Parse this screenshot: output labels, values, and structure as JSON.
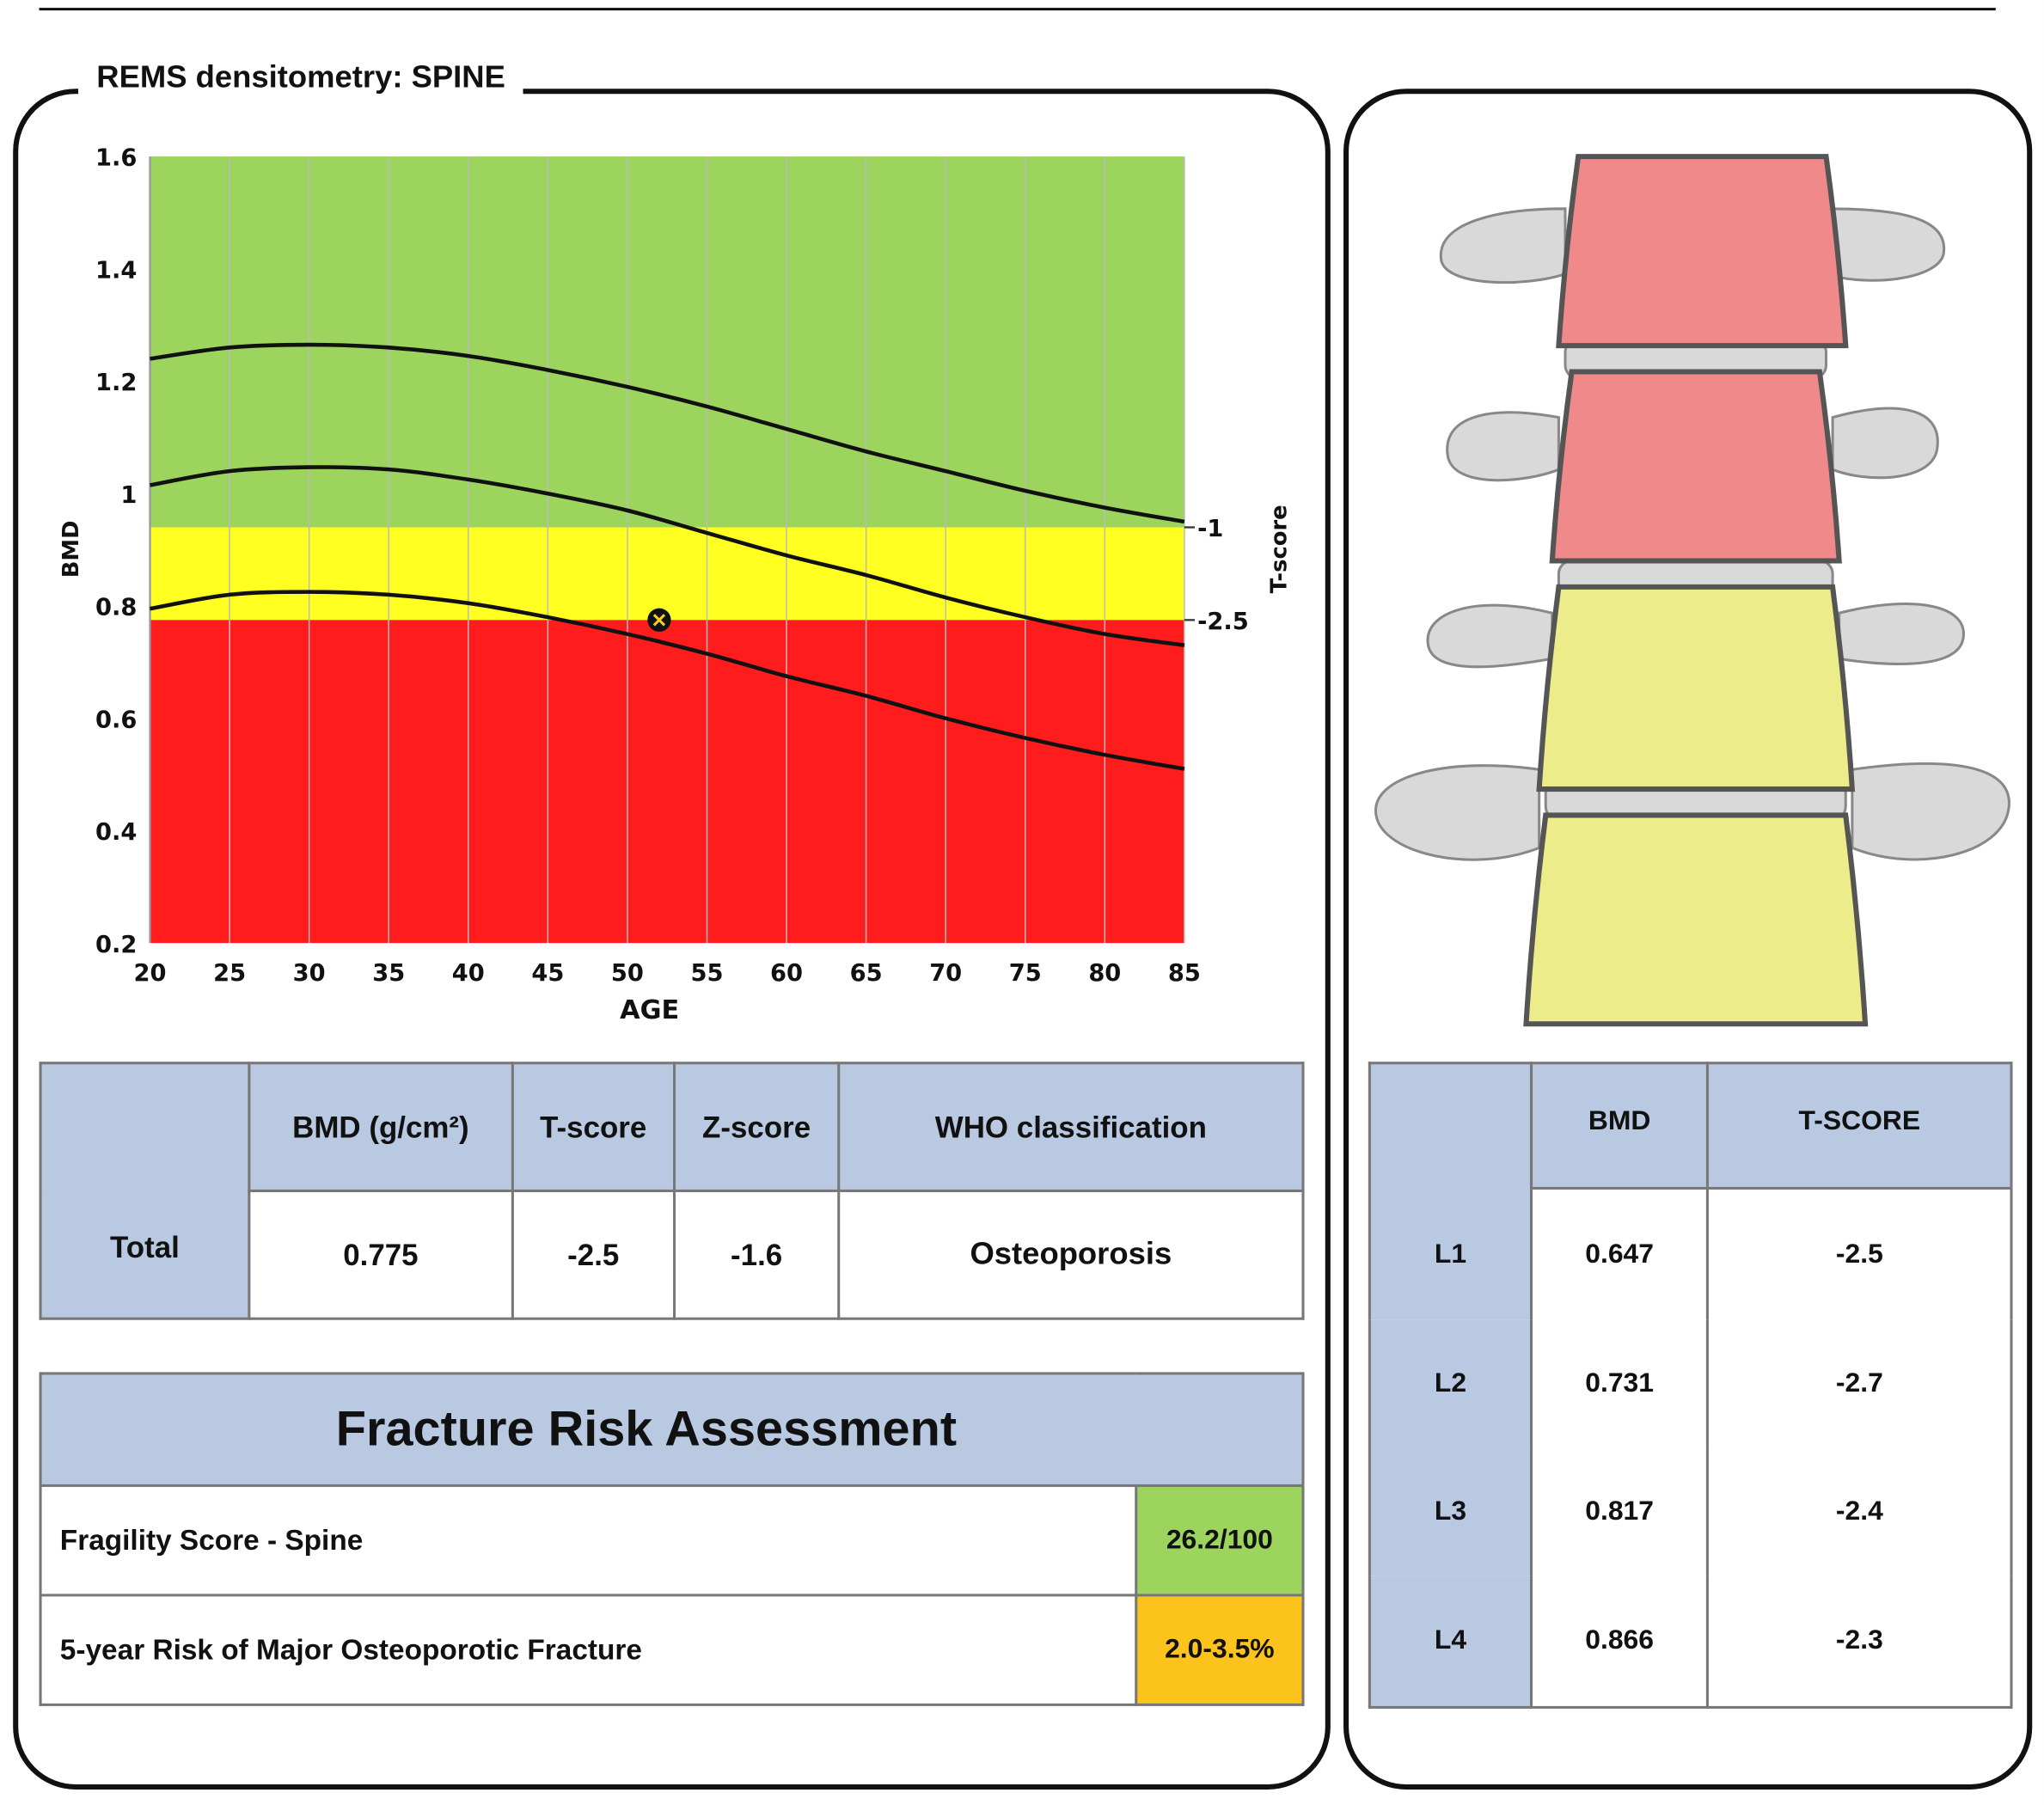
{
  "panel_title": "REMS densitometry: SPINE",
  "chart_data": {
    "type": "line",
    "xlabel": "AGE",
    "ylabel": "BMD",
    "y2label": "T-score",
    "xlim": [
      20,
      85
    ],
    "ylim": [
      0.2,
      1.6
    ],
    "xticks": [
      "20",
      "25",
      "30",
      "35",
      "40",
      "45",
      "50",
      "55",
      "60",
      "65",
      "70",
      "75",
      "80",
      "85"
    ],
    "yticks": [
      "0.2",
      "0.4",
      "0.6",
      "0.8",
      "1",
      "1.2",
      "1.4",
      "1.6"
    ],
    "zones": [
      {
        "name": "normal",
        "from": 0.94,
        "to": 1.6,
        "color": "#9cd45e"
      },
      {
        "name": "osteopenia",
        "from": 0.775,
        "to": 0.94,
        "color": "#ffff22"
      },
      {
        "name": "osteoporosis",
        "from": 0.2,
        "to": 0.775,
        "color": "#fe1c1c"
      }
    ],
    "t_score_marks": [
      {
        "label": "-1",
        "bmd": 0.94
      },
      {
        "label": "-2.5",
        "bmd": 0.775
      }
    ],
    "x": [
      20,
      25,
      30,
      35,
      40,
      45,
      50,
      55,
      60,
      65,
      70,
      75,
      80,
      85
    ],
    "series": [
      {
        "name": "upper",
        "values": [
          1.24,
          1.26,
          1.265,
          1.26,
          1.245,
          1.22,
          1.19,
          1.155,
          1.115,
          1.075,
          1.04,
          1.005,
          0.975,
          0.95
        ]
      },
      {
        "name": "mean",
        "values": [
          1.015,
          1.04,
          1.047,
          1.043,
          1.025,
          1.0,
          0.97,
          0.93,
          0.89,
          0.855,
          0.815,
          0.78,
          0.75,
          0.73
        ]
      },
      {
        "name": "lower",
        "values": [
          0.795,
          0.82,
          0.825,
          0.82,
          0.805,
          0.78,
          0.75,
          0.715,
          0.675,
          0.64,
          0.6,
          0.565,
          0.535,
          0.51
        ]
      }
    ],
    "patient": {
      "age": 52,
      "bmd": 0.775
    }
  },
  "summary": {
    "headers": [
      "BMD (g/cm²)",
      "T-score",
      "Z-score",
      "WHO classification"
    ],
    "row_label": "Total",
    "values": [
      "0.775",
      "-2.5",
      "-1.6",
      "Osteoporosis"
    ]
  },
  "fracture": {
    "title": "Fracture Risk Assessment",
    "rows": [
      {
        "label": "Fragility Score - Spine",
        "value": "26.2/100",
        "color": "#9cd45e"
      },
      {
        "label": "5-year Risk of Major Osteoporotic Fracture",
        "value": "2.0-3.5%",
        "color": "#fcc31c"
      }
    ]
  },
  "vertebrae": {
    "headers": [
      "BMD",
      "T-SCORE"
    ],
    "rows": [
      {
        "label": "L1",
        "bmd": "0.647",
        "t": "-2.5",
        "color": "#f08a8a"
      },
      {
        "label": "L2",
        "bmd": "0.731",
        "t": "-2.7",
        "color": "#f08a8a"
      },
      {
        "label": "L3",
        "bmd": "0.817",
        "t": "-2.4",
        "color": "#ecec8a"
      },
      {
        "label": "L4",
        "bmd": "0.866",
        "t": "-2.3",
        "color": "#ecec8a"
      }
    ]
  }
}
